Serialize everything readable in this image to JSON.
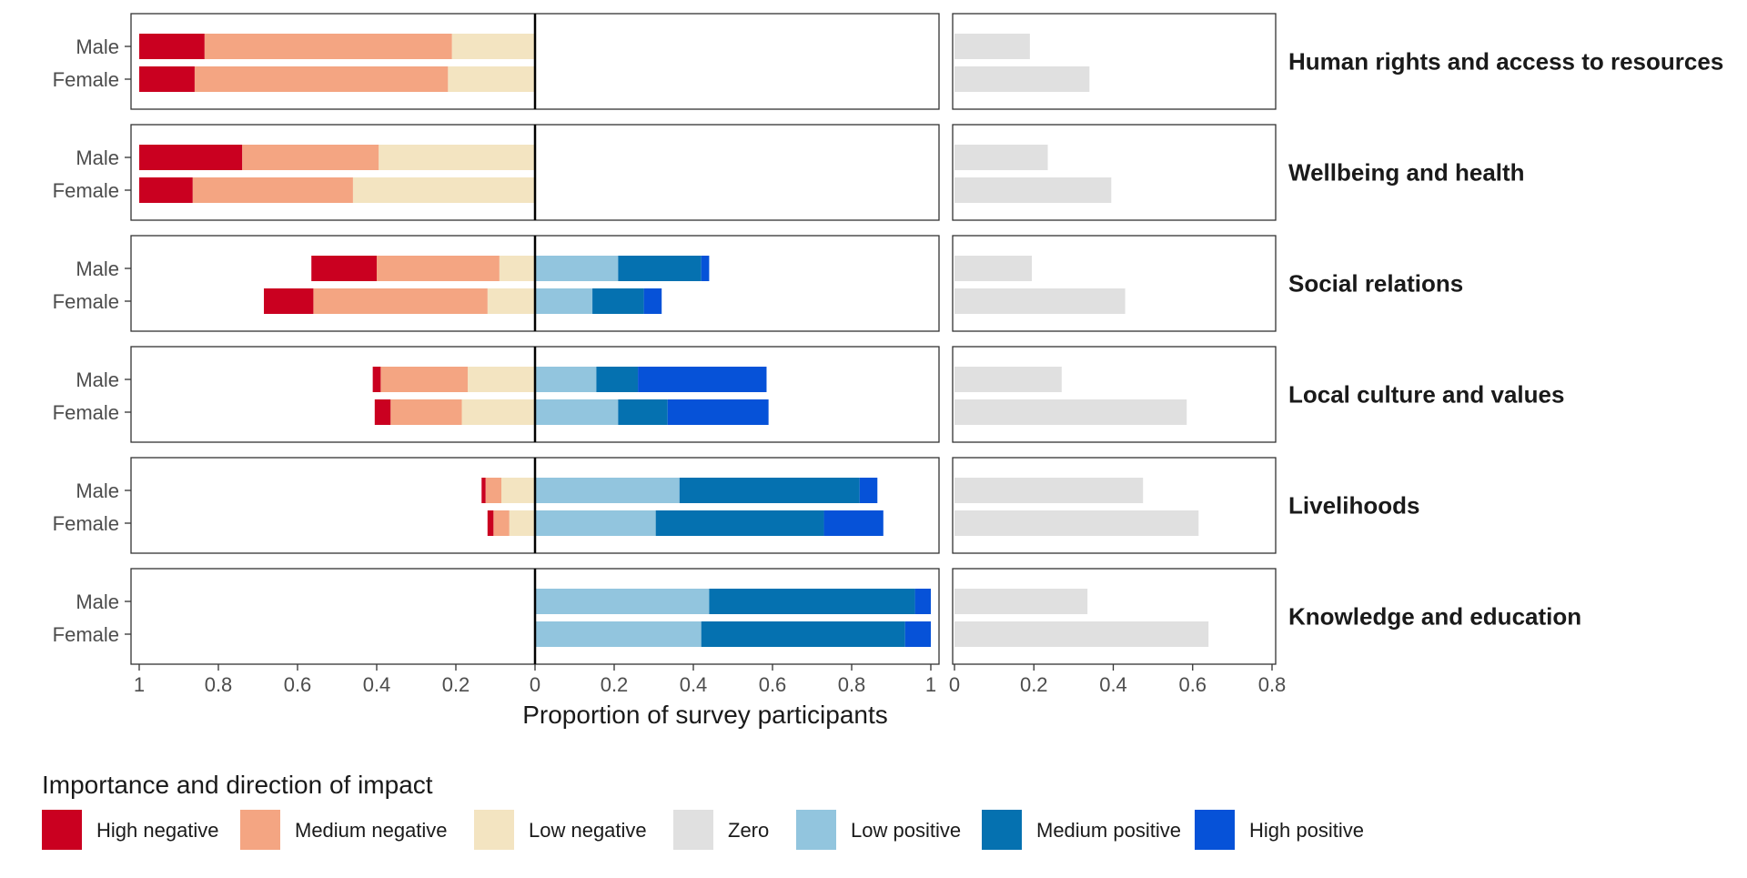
{
  "chart_data": {
    "type": "bar",
    "orientation": "horizontal",
    "layout": "diverging stacked bars (left panel) with separate zero-impact bars (right panel), faceted by impact domain",
    "xlabel": "Proportion of survey participants",
    "left_axis": {
      "xlim": [
        -1,
        1
      ],
      "ticks": [
        -1,
        -0.8,
        -0.6,
        -0.4,
        -0.2,
        0,
        0.2,
        0.4,
        0.6,
        0.8,
        1
      ],
      "tick_labels": [
        "1",
        "0.8",
        "0.6",
        "0.4",
        "0.2",
        "0",
        "0.2",
        "0.4",
        "0.6",
        "0.8",
        "1"
      ]
    },
    "right_axis": {
      "xlim": [
        0,
        0.8
      ],
      "ticks": [
        0,
        0.2,
        0.4,
        0.6,
        0.8
      ],
      "tick_labels": [
        "0",
        "0.2",
        "0.4",
        "0.6",
        "0.8"
      ]
    },
    "groups": [
      "Male",
      "Female"
    ],
    "categories": [
      "High negative",
      "Medium negative",
      "Low negative",
      "Zero",
      "Low positive",
      "Medium positive",
      "High positive"
    ],
    "colors": {
      "High negative": "#ca0020",
      "Medium negative": "#f4a582",
      "Low negative": "#f3e4c1",
      "Zero": "#e0e0e0",
      "Low positive": "#92c5de",
      "Medium positive": "#0571b0",
      "High positive": "#0652d8"
    },
    "legend": {
      "title": "Importance and direction of impact",
      "position": "bottom"
    },
    "grid": false,
    "facets": [
      {
        "label": "Human rights and access to resources",
        "rows": [
          {
            "group": "Male",
            "high_neg": 0.165,
            "med_neg": 0.625,
            "low_neg": 0.21,
            "low_pos": 0,
            "med_pos": 0,
            "high_pos": 0,
            "zero": 0.19
          },
          {
            "group": "Female",
            "high_neg": 0.14,
            "med_neg": 0.64,
            "low_neg": 0.22,
            "low_pos": 0,
            "med_pos": 0,
            "high_pos": 0,
            "zero": 0.34
          }
        ]
      },
      {
        "label": "Wellbeing and health",
        "rows": [
          {
            "group": "Male",
            "high_neg": 0.26,
            "med_neg": 0.345,
            "low_neg": 0.395,
            "low_pos": 0,
            "med_pos": 0,
            "high_pos": 0,
            "zero": 0.235
          },
          {
            "group": "Female",
            "high_neg": 0.135,
            "med_neg": 0.405,
            "low_neg": 0.46,
            "low_pos": 0,
            "med_pos": 0,
            "high_pos": 0,
            "zero": 0.395
          }
        ]
      },
      {
        "label": "Social relations",
        "rows": [
          {
            "group": "Male",
            "high_neg": 0.165,
            "med_neg": 0.31,
            "low_neg": 0.09,
            "low_pos": 0.21,
            "med_pos": 0.21,
            "high_pos": 0.02,
            "zero": 0.195
          },
          {
            "group": "Female",
            "high_neg": 0.125,
            "med_neg": 0.44,
            "low_neg": 0.12,
            "low_pos": 0.145,
            "med_pos": 0.13,
            "high_pos": 0.045,
            "zero": 0.43
          }
        ]
      },
      {
        "label": "Local culture and values",
        "rows": [
          {
            "group": "Male",
            "high_neg": 0.02,
            "med_neg": 0.22,
            "low_neg": 0.17,
            "low_pos": 0.155,
            "med_pos": 0.105,
            "high_pos": 0.325,
            "zero": 0.27
          },
          {
            "group": "Female",
            "high_neg": 0.04,
            "med_neg": 0.18,
            "low_neg": 0.185,
            "low_pos": 0.21,
            "med_pos": 0.125,
            "high_pos": 0.255,
            "zero": 0.585
          }
        ]
      },
      {
        "label": "Livelihoods",
        "rows": [
          {
            "group": "Male",
            "high_neg": 0.01,
            "med_neg": 0.04,
            "low_neg": 0.085,
            "low_pos": 0.365,
            "med_pos": 0.455,
            "high_pos": 0.045,
            "zero": 0.475
          },
          {
            "group": "Female",
            "high_neg": 0.015,
            "med_neg": 0.04,
            "low_neg": 0.065,
            "low_pos": 0.305,
            "med_pos": 0.425,
            "high_pos": 0.15,
            "zero": 0.615
          }
        ]
      },
      {
        "label": "Knowledge and education",
        "rows": [
          {
            "group": "Male",
            "high_neg": 0,
            "med_neg": 0,
            "low_neg": 0,
            "low_pos": 0.44,
            "med_pos": 0.52,
            "high_pos": 0.04,
            "zero": 0.335
          },
          {
            "group": "Female",
            "high_neg": 0,
            "med_neg": 0,
            "low_neg": 0,
            "low_pos": 0.42,
            "med_pos": 0.515,
            "high_pos": 0.065,
            "zero": 0.64
          }
        ]
      }
    ]
  }
}
